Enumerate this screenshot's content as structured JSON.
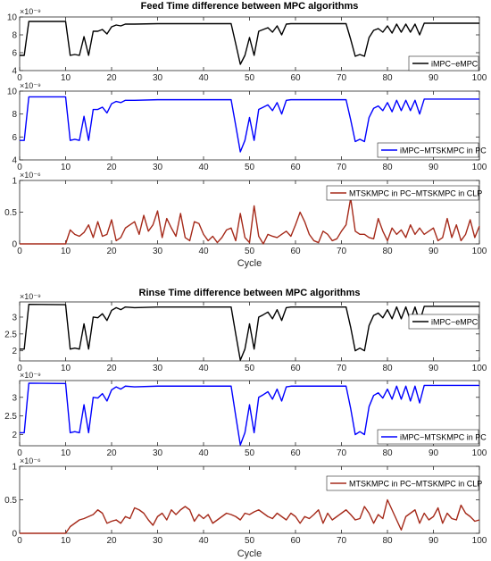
{
  "figure": {
    "background": "#ffffff"
  },
  "chart_data": [
    {
      "type": "line",
      "title": "Feed Time difference between MPC algorithms",
      "xlabel": "",
      "ylabel": "",
      "multiplier": "×10⁻⁹",
      "xlim": [
        0,
        100
      ],
      "ylim": [
        4,
        10
      ],
      "xticks": [
        "0",
        "10",
        "20",
        "30",
        "40",
        "50",
        "60",
        "70",
        "80",
        "90",
        "100"
      ],
      "yticks": [
        "4",
        "6",
        "8",
        "10"
      ],
      "ytick_values": [
        4,
        6,
        8,
        10
      ],
      "legend": "top-right",
      "series": [
        {
          "name": "iMPC−eMPC",
          "color": "#000000",
          "x": [
            0,
            1,
            2,
            10,
            11,
            12,
            13,
            14,
            15,
            16,
            17,
            18,
            19,
            20,
            21,
            22,
            23,
            25,
            30,
            40,
            46,
            47,
            48,
            49,
            50,
            51,
            52,
            53,
            54,
            55,
            56,
            57,
            58,
            59,
            60,
            70,
            71,
            72,
            73,
            74,
            75,
            76,
            77,
            78,
            79,
            80,
            81,
            82,
            83,
            84,
            85,
            86,
            87,
            88,
            89,
            100
          ],
          "values": [
            5.7,
            5.7,
            9.5,
            9.5,
            5.7,
            5.8,
            5.7,
            7.8,
            5.7,
            8.4,
            8.4,
            8.6,
            8.1,
            8.9,
            9.1,
            9.0,
            9.2,
            9.2,
            9.25,
            9.25,
            9.25,
            7.0,
            4.7,
            5.7,
            7.7,
            5.7,
            8.4,
            8.6,
            8.8,
            8.3,
            9.0,
            8.0,
            9.2,
            9.25,
            9.25,
            9.25,
            9.25,
            7.5,
            5.6,
            5.8,
            5.6,
            7.7,
            8.5,
            8.7,
            8.3,
            9.0,
            8.2,
            9.2,
            8.3,
            9.2,
            8.3,
            9.2,
            8.0,
            9.3,
            9.3,
            9.3
          ]
        }
      ]
    },
    {
      "type": "line",
      "title": "",
      "xlabel": "",
      "ylabel": "",
      "multiplier": "×10⁻⁹",
      "xlim": [
        0,
        100
      ],
      "ylim": [
        4,
        10
      ],
      "xticks": [
        "0",
        "10",
        "20",
        "30",
        "40",
        "50",
        "60",
        "70",
        "80",
        "90",
        "100"
      ],
      "yticks": [
        "4",
        "6",
        "8",
        "10"
      ],
      "ytick_values": [
        4,
        6,
        8,
        10
      ],
      "legend": "bottom-right",
      "series": [
        {
          "name": "iMPC−MTSKMPC in PC",
          "color": "#0000ff",
          "x": [
            0,
            1,
            2,
            10,
            11,
            12,
            13,
            14,
            15,
            16,
            17,
            18,
            19,
            20,
            21,
            22,
            23,
            25,
            30,
            40,
            46,
            47,
            48,
            49,
            50,
            51,
            52,
            53,
            54,
            55,
            56,
            57,
            58,
            59,
            60,
            70,
            71,
            72,
            73,
            74,
            75,
            76,
            77,
            78,
            79,
            80,
            81,
            82,
            83,
            84,
            85,
            86,
            87,
            88,
            89,
            100
          ],
          "values": [
            5.7,
            5.7,
            9.5,
            9.5,
            5.7,
            5.8,
            5.7,
            7.8,
            5.7,
            8.4,
            8.4,
            8.6,
            8.1,
            8.9,
            9.1,
            9.0,
            9.2,
            9.2,
            9.25,
            9.25,
            9.25,
            7.0,
            4.7,
            5.7,
            7.7,
            5.7,
            8.4,
            8.6,
            8.8,
            8.3,
            9.0,
            8.0,
            9.2,
            9.25,
            9.25,
            9.25,
            9.25,
            7.5,
            5.6,
            5.8,
            5.6,
            7.7,
            8.5,
            8.7,
            8.3,
            9.0,
            8.2,
            9.2,
            8.3,
            9.2,
            8.3,
            9.2,
            8.0,
            9.3,
            9.3,
            9.3
          ]
        }
      ]
    },
    {
      "type": "line",
      "title": "",
      "xlabel": "Cycle",
      "ylabel": "",
      "multiplier": "×10⁻⁶",
      "xlim": [
        0,
        100
      ],
      "ylim": [
        0,
        1
      ],
      "xticks": [
        "0",
        "10",
        "20",
        "30",
        "40",
        "50",
        "60",
        "70",
        "80",
        "90",
        "100"
      ],
      "yticks": [
        "0",
        "0.5",
        "1"
      ],
      "ytick_values": [
        0,
        0.5,
        1
      ],
      "legend": "top-right",
      "series": [
        {
          "name": "MTSKMPC in PC−MTSKMPC in CLP",
          "color": "#a52a1a",
          "x": [
            0,
            1,
            2,
            3,
            4,
            5,
            6,
            7,
            8,
            9,
            10,
            11,
            12,
            13,
            14,
            15,
            16,
            17,
            18,
            19,
            20,
            21,
            22,
            23,
            24,
            25,
            26,
            27,
            28,
            29,
            30,
            31,
            32,
            33,
            34,
            35,
            36,
            37,
            38,
            39,
            40,
            41,
            42,
            43,
            44,
            45,
            46,
            47,
            48,
            49,
            50,
            51,
            52,
            53,
            54,
            55,
            56,
            57,
            58,
            59,
            60,
            61,
            62,
            63,
            64,
            65,
            66,
            67,
            68,
            69,
            70,
            71,
            72,
            73,
            74,
            75,
            76,
            77,
            78,
            79,
            80,
            81,
            82,
            83,
            84,
            85,
            86,
            87,
            88,
            89,
            90,
            91,
            92,
            93,
            94,
            95,
            96,
            97,
            98,
            99,
            100
          ],
          "values": [
            0,
            0,
            0,
            0,
            0,
            0,
            0,
            0,
            0,
            0,
            0,
            0.22,
            0.15,
            0.12,
            0.18,
            0.3,
            0.1,
            0.35,
            0.12,
            0.15,
            0.38,
            0.05,
            0.1,
            0.25,
            0.3,
            0.35,
            0.15,
            0.45,
            0.2,
            0.3,
            0.52,
            0.1,
            0.4,
            0.25,
            0.12,
            0.48,
            0.1,
            0.05,
            0.35,
            0.32,
            0.15,
            0.05,
            0.12,
            0.02,
            0.1,
            0.22,
            0.25,
            0.05,
            0.48,
            0.1,
            0.02,
            0.6,
            0.12,
            0.0,
            0.15,
            0.12,
            0.1,
            0.15,
            0.2,
            0.12,
            0.3,
            0.5,
            0.35,
            0.15,
            0.05,
            0.02,
            0.2,
            0.15,
            0.05,
            0.08,
            0.2,
            0.3,
            0.72,
            0.2,
            0.15,
            0.15,
            0.1,
            0.08,
            0.4,
            0.2,
            0.05,
            0.25,
            0.15,
            0.22,
            0.1,
            0.3,
            0.15,
            0.25,
            0.15,
            0.2,
            0.25,
            0.05,
            0.1,
            0.4,
            0.1,
            0.3,
            0.05,
            0.15,
            0.38,
            0.1,
            0.28
          ]
        }
      ]
    },
    {
      "type": "line",
      "title": "Rinse Time difference between MPC algorithms",
      "xlabel": "",
      "ylabel": "",
      "multiplier": "×10⁻⁹",
      "xlim": [
        0,
        100
      ],
      "ylim": [
        1.7,
        3.45
      ],
      "xticks": [
        "0",
        "10",
        "20",
        "30",
        "40",
        "50",
        "60",
        "70",
        "80",
        "90",
        "100"
      ],
      "yticks": [
        "2",
        "2.5",
        "3"
      ],
      "ytick_values": [
        2,
        2.5,
        3
      ],
      "legend": "top-right",
      "series": [
        {
          "name": "iMPC−eMPC",
          "color": "#000000",
          "x": [
            0,
            1,
            2,
            10,
            11,
            12,
            13,
            14,
            15,
            16,
            17,
            18,
            19,
            20,
            21,
            22,
            23,
            25,
            30,
            40,
            46,
            47,
            48,
            49,
            50,
            51,
            52,
            53,
            54,
            55,
            56,
            57,
            58,
            59,
            60,
            70,
            71,
            72,
            73,
            74,
            75,
            76,
            77,
            78,
            79,
            80,
            81,
            82,
            83,
            84,
            85,
            86,
            87,
            88,
            89,
            100
          ],
          "values": [
            2.05,
            2.05,
            3.38,
            3.37,
            2.05,
            2.08,
            2.05,
            2.8,
            2.05,
            3.0,
            2.98,
            3.1,
            2.9,
            3.2,
            3.28,
            3.22,
            3.3,
            3.28,
            3.3,
            3.3,
            3.3,
            2.5,
            1.72,
            2.05,
            2.8,
            2.05,
            3.0,
            3.07,
            3.15,
            2.95,
            3.22,
            2.9,
            3.28,
            3.3,
            3.3,
            3.3,
            3.3,
            2.7,
            2.0,
            2.08,
            2.0,
            2.75,
            3.05,
            3.12,
            2.98,
            3.22,
            2.95,
            3.3,
            2.95,
            3.3,
            2.9,
            3.3,
            2.85,
            3.32,
            3.32,
            3.32
          ]
        }
      ]
    },
    {
      "type": "line",
      "title": "",
      "xlabel": "",
      "ylabel": "",
      "multiplier": "×10⁻⁹",
      "xlim": [
        0,
        100
      ],
      "ylim": [
        1.7,
        3.45
      ],
      "xticks": [
        "0",
        "10",
        "20",
        "30",
        "40",
        "50",
        "60",
        "70",
        "80",
        "90",
        "100"
      ],
      "yticks": [
        "2",
        "2.5",
        "3"
      ],
      "ytick_values": [
        2,
        2.5,
        3
      ],
      "legend": "bottom-right",
      "series": [
        {
          "name": "iMPC−MTSKMPC in PC",
          "color": "#0000ff",
          "x": [
            0,
            1,
            2,
            10,
            11,
            12,
            13,
            14,
            15,
            16,
            17,
            18,
            19,
            20,
            21,
            22,
            23,
            25,
            30,
            40,
            46,
            47,
            48,
            49,
            50,
            51,
            52,
            53,
            54,
            55,
            56,
            57,
            58,
            59,
            60,
            70,
            71,
            72,
            73,
            74,
            75,
            76,
            77,
            78,
            79,
            80,
            81,
            82,
            83,
            84,
            85,
            86,
            87,
            88,
            89,
            100
          ],
          "values": [
            2.05,
            2.05,
            3.38,
            3.37,
            2.05,
            2.08,
            2.05,
            2.8,
            2.05,
            3.0,
            2.98,
            3.1,
            2.9,
            3.2,
            3.28,
            3.22,
            3.3,
            3.28,
            3.3,
            3.3,
            3.3,
            2.5,
            1.72,
            2.05,
            2.8,
            2.05,
            3.0,
            3.07,
            3.15,
            2.95,
            3.22,
            2.9,
            3.28,
            3.3,
            3.3,
            3.3,
            3.3,
            2.7,
            2.0,
            2.08,
            2.0,
            2.75,
            3.05,
            3.12,
            2.98,
            3.22,
            2.95,
            3.3,
            2.95,
            3.3,
            2.9,
            3.3,
            2.85,
            3.32,
            3.32,
            3.32
          ]
        }
      ]
    },
    {
      "type": "line",
      "title": "",
      "xlabel": "Cycle",
      "ylabel": "",
      "multiplier": "×10⁻⁶",
      "xlim": [
        0,
        100
      ],
      "ylim": [
        0,
        1
      ],
      "xticks": [
        "0",
        "10",
        "20",
        "30",
        "40",
        "50",
        "60",
        "70",
        "80",
        "90",
        "100"
      ],
      "yticks": [
        "0",
        "0.5",
        "1"
      ],
      "ytick_values": [
        0,
        0.5,
        1
      ],
      "legend": "top-right",
      "series": [
        {
          "name": "MTSKMPC in PC−MTSKMPC in CLP",
          "color": "#a52a1a",
          "x": [
            0,
            1,
            2,
            3,
            4,
            5,
            6,
            7,
            8,
            9,
            10,
            11,
            12,
            13,
            14,
            15,
            16,
            17,
            18,
            19,
            20,
            21,
            22,
            23,
            24,
            25,
            26,
            27,
            28,
            29,
            30,
            31,
            32,
            33,
            34,
            35,
            36,
            37,
            38,
            39,
            40,
            41,
            42,
            43,
            44,
            45,
            46,
            47,
            48,
            49,
            50,
            51,
            52,
            53,
            54,
            55,
            56,
            57,
            58,
            59,
            60,
            61,
            62,
            63,
            64,
            65,
            66,
            67,
            68,
            69,
            70,
            71,
            72,
            73,
            74,
            75,
            76,
            77,
            78,
            79,
            80,
            81,
            82,
            83,
            84,
            85,
            86,
            87,
            88,
            89,
            90,
            91,
            92,
            93,
            94,
            95,
            96,
            97,
            98,
            99,
            100
          ],
          "values": [
            0,
            0,
            0,
            0,
            0,
            0,
            0,
            0,
            0,
            0,
            0,
            0.1,
            0.15,
            0.2,
            0.22,
            0.25,
            0.28,
            0.35,
            0.3,
            0.15,
            0.18,
            0.2,
            0.15,
            0.25,
            0.22,
            0.38,
            0.35,
            0.3,
            0.2,
            0.12,
            0.25,
            0.3,
            0.2,
            0.35,
            0.28,
            0.35,
            0.4,
            0.35,
            0.18,
            0.28,
            0.22,
            0.28,
            0.15,
            0.2,
            0.25,
            0.3,
            0.28,
            0.25,
            0.2,
            0.3,
            0.28,
            0.32,
            0.35,
            0.3,
            0.25,
            0.22,
            0.3,
            0.25,
            0.2,
            0.3,
            0.25,
            0.15,
            0.25,
            0.22,
            0.28,
            0.35,
            0.15,
            0.3,
            0.2,
            0.25,
            0.3,
            0.35,
            0.28,
            0.2,
            0.22,
            0.4,
            0.3,
            0.15,
            0.28,
            0.22,
            0.5,
            0.35,
            0.2,
            0.05,
            0.25,
            0.3,
            0.35,
            0.15,
            0.3,
            0.2,
            0.25,
            0.38,
            0.15,
            0.3,
            0.22,
            0.2,
            0.42,
            0.3,
            0.25,
            0.18,
            0.2
          ]
        }
      ]
    }
  ]
}
